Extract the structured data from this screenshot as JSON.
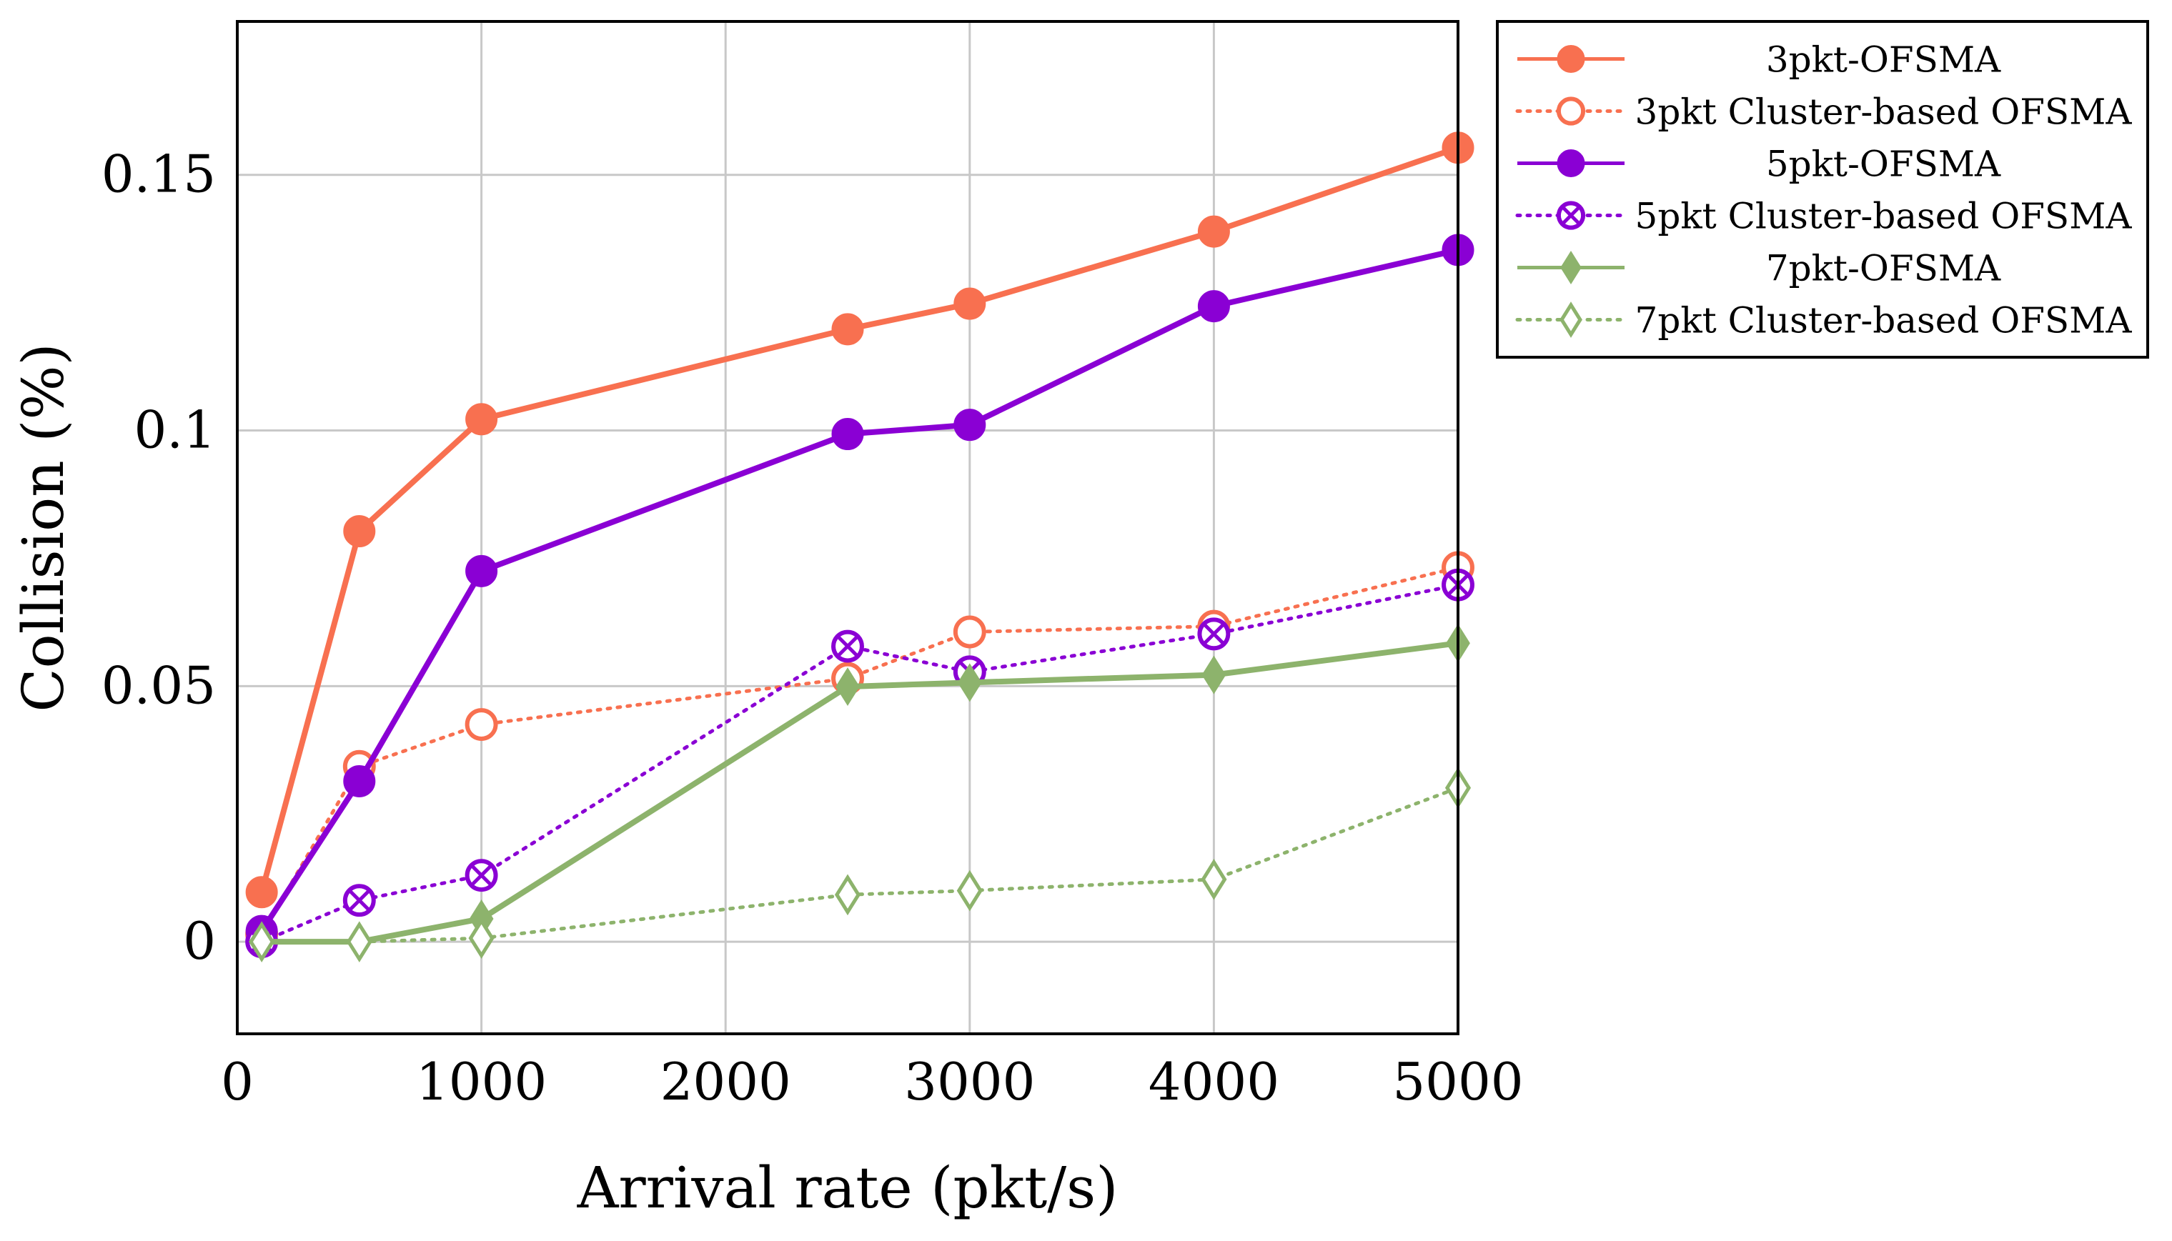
{
  "chart_data": {
    "type": "line",
    "xlabel": "Arrival rate (pkt/s)",
    "ylabel": "Collision (%)",
    "xlim": [
      0,
      5000
    ],
    "ylim": [
      -0.018,
      0.18
    ],
    "grid": true,
    "legend_position": "outside-top-right",
    "x_ticks": [
      0,
      1000,
      2000,
      3000,
      4000,
      5000
    ],
    "x_tick_labels": [
      "0",
      "1000",
      "2000",
      "3000",
      "4000",
      "5000"
    ],
    "y_ticks": [
      0,
      0.05,
      0.1,
      0.15
    ],
    "y_tick_labels": [
      "0",
      "0.05",
      "0.1",
      "0.15"
    ],
    "series": [
      {
        "name": "3pkt-OFSMA",
        "color": "#f87050",
        "line": "solid",
        "marker": "filled-circle",
        "x": [
          100,
          500,
          1000,
          2500,
          3000,
          4000,
          5000
        ],
        "y": [
          0.0097,
          0.0803,
          0.1022,
          0.1198,
          0.1248,
          0.1389,
          0.1553
        ]
      },
      {
        "name": "3pkt Cluster-based OFSMA",
        "color": "#f87050",
        "line": "dotted",
        "marker": "open-circle",
        "x": [
          100,
          500,
          1000,
          2500,
          3000,
          4000,
          5000
        ],
        "y": [
          0.0015,
          0.0343,
          0.0425,
          0.0515,
          0.0606,
          0.0617,
          0.0732
        ]
      },
      {
        "name": "5pkt-OFSMA",
        "color": "#8a00d4",
        "line": "solid",
        "marker": "filled-circle",
        "x": [
          100,
          500,
          1000,
          2500,
          3000,
          4000,
          5000
        ],
        "y": [
          0.0021,
          0.0314,
          0.0725,
          0.0993,
          0.1011,
          0.1243,
          0.1353
        ]
      },
      {
        "name": "5pkt Cluster-based OFSMA",
        "color": "#8a00d4",
        "line": "dotted",
        "marker": "crossed-circle",
        "x": [
          100,
          500,
          1000,
          2500,
          3000,
          4000,
          5000
        ],
        "y": [
          0.0,
          0.0081,
          0.013,
          0.0578,
          0.0528,
          0.0602,
          0.0698
        ]
      },
      {
        "name": "7pkt-OFSMA",
        "color": "#8db36c",
        "line": "solid",
        "marker": "filled-diamond",
        "x": [
          100,
          500,
          1000,
          2500,
          3000,
          4000,
          5000
        ],
        "y": [
          0.0,
          0.0,
          0.0045,
          0.0499,
          0.0507,
          0.0522,
          0.0584
        ]
      },
      {
        "name": "7pkt Cluster-based OFSMA",
        "color": "#8db36c",
        "line": "dotted",
        "marker": "open-diamond",
        "x": [
          100,
          500,
          1000,
          2500,
          3000,
          4000,
          5000
        ],
        "y": [
          0.0,
          0.0,
          0.0007,
          0.0092,
          0.01,
          0.0122,
          0.0301
        ]
      }
    ]
  }
}
